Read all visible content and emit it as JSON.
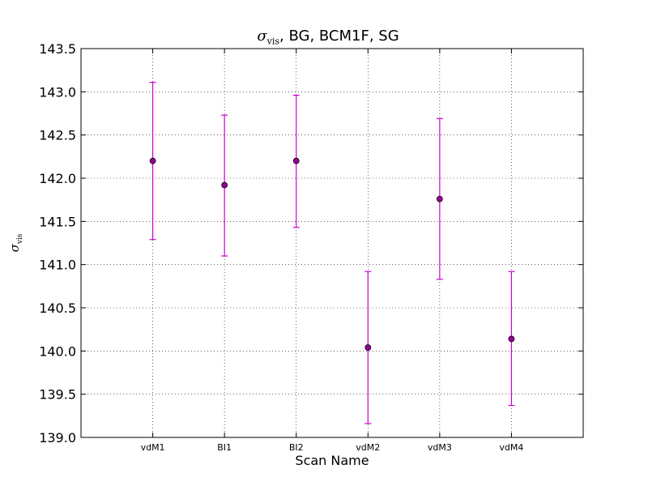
{
  "chart_data": {
    "type": "scatter",
    "title": {
      "symbol": "σ",
      "subscript": "vis",
      "rest": ", BG, BCM1F, SG"
    },
    "xlabel": "Scan Name",
    "ylabel": {
      "symbol": "σ",
      "subscript": "vis"
    },
    "categories": [
      "vdM1",
      "BI1",
      "BI2",
      "vdM2",
      "vdM3",
      "vdM4"
    ],
    "series": [
      {
        "values": [
          142.2,
          141.92,
          142.2,
          140.04,
          141.76,
          140.14
        ],
        "err_low": [
          141.29,
          141.1,
          141.43,
          139.16,
          140.83,
          139.37
        ],
        "err_high": [
          143.11,
          142.73,
          142.96,
          140.92,
          142.69,
          140.92
        ],
        "color": "#990099",
        "errcolor": "#cc00cc"
      }
    ],
    "ylim": [
      139.0,
      143.5
    ],
    "yticks": [
      "139.0",
      "139.5",
      "140.0",
      "140.5",
      "141.0",
      "141.5",
      "142.0",
      "142.5",
      "143.0",
      "143.5"
    ],
    "grid": true
  }
}
